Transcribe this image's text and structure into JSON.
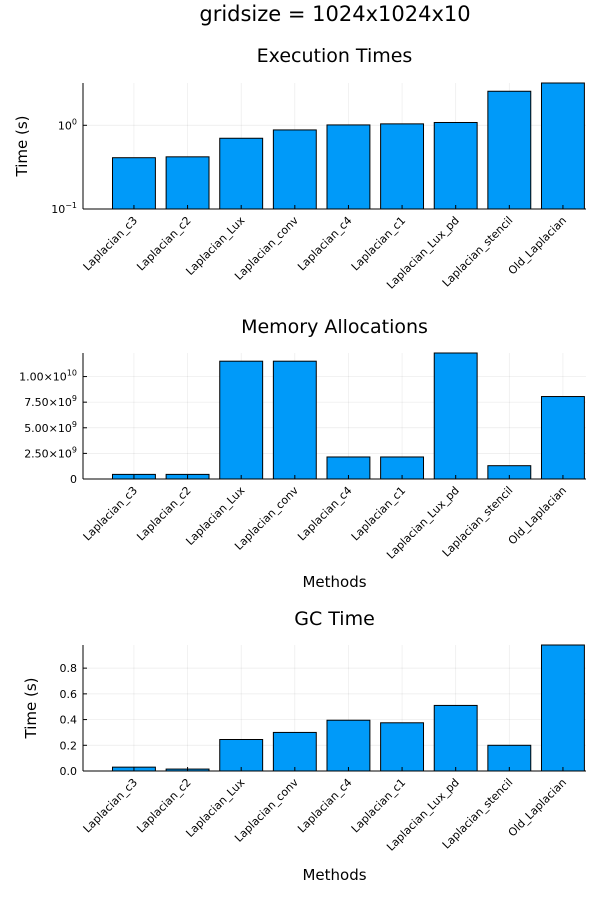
{
  "figure": {
    "title": "gridsize = 1024x1024x10"
  },
  "chart_data": [
    {
      "type": "bar",
      "title": "Execution Times",
      "xlabel": "",
      "ylabel": "Time (s)",
      "yscale": "log10",
      "ylim": [
        0.1,
        3.2
      ],
      "yticks": [
        0.1,
        1
      ],
      "ytick_labels": [
        {
          "base": "10",
          "exp": "−1"
        },
        {
          "base": "10",
          "exp": "0"
        }
      ],
      "grid": true,
      "color": "#009af9",
      "categories": [
        "Laplacian_c3",
        "Laplacian_c2",
        "Laplacian_Lux",
        "Laplacian_conv",
        "Laplacian_c4",
        "Laplacian_c1",
        "Laplacian_Lux_pd",
        "Laplacian_stencil",
        "Old_Laplacian"
      ],
      "values": [
        0.41,
        0.42,
        0.7,
        0.88,
        1.01,
        1.04,
        1.08,
        2.55,
        3.2
      ]
    },
    {
      "type": "bar",
      "title": "Memory Allocations",
      "xlabel": "Methods",
      "ylabel": "",
      "yscale": "linear",
      "ylim": [
        0,
        12300000000
      ],
      "yticks": [
        0,
        2500000000,
        5000000000,
        7500000000,
        10000000000
      ],
      "ytick_labels": [
        {
          "base": "0",
          "exp": ""
        },
        {
          "base": "2.50×10",
          "exp": "9"
        },
        {
          "base": "5.00×10",
          "exp": "9"
        },
        {
          "base": "7.50×10",
          "exp": "9"
        },
        {
          "base": "1.00×10",
          "exp": "10"
        }
      ],
      "grid": true,
      "color": "#009af9",
      "categories": [
        "Laplacian_c3",
        "Laplacian_c2",
        "Laplacian_Lux",
        "Laplacian_conv",
        "Laplacian_c4",
        "Laplacian_c1",
        "Laplacian_Lux_pd",
        "Laplacian_stencil",
        "Old_Laplacian"
      ],
      "values": [
        450000000,
        450000000,
        11500000000,
        11500000000,
        2150000000,
        2150000000,
        12300000000,
        1300000000,
        8050000000
      ]
    },
    {
      "type": "bar",
      "title": "GC Time",
      "xlabel": "Methods",
      "ylabel": "Time (s)",
      "yscale": "linear",
      "ylim": [
        0,
        0.98
      ],
      "yticks": [
        0,
        0.2,
        0.4,
        0.6,
        0.8
      ],
      "ytick_labels": [
        {
          "base": "0.0",
          "exp": ""
        },
        {
          "base": "0.2",
          "exp": ""
        },
        {
          "base": "0.4",
          "exp": ""
        },
        {
          "base": "0.6",
          "exp": ""
        },
        {
          "base": "0.8",
          "exp": ""
        }
      ],
      "grid": true,
      "color": "#009af9",
      "categories": [
        "Laplacian_c3",
        "Laplacian_c2",
        "Laplacian_Lux",
        "Laplacian_conv",
        "Laplacian_c4",
        "Laplacian_c1",
        "Laplacian_Lux_pd",
        "Laplacian_stencil",
        "Old_Laplacian"
      ],
      "values": [
        0.03,
        0.015,
        0.245,
        0.3,
        0.395,
        0.375,
        0.51,
        0.2,
        0.98
      ]
    }
  ]
}
